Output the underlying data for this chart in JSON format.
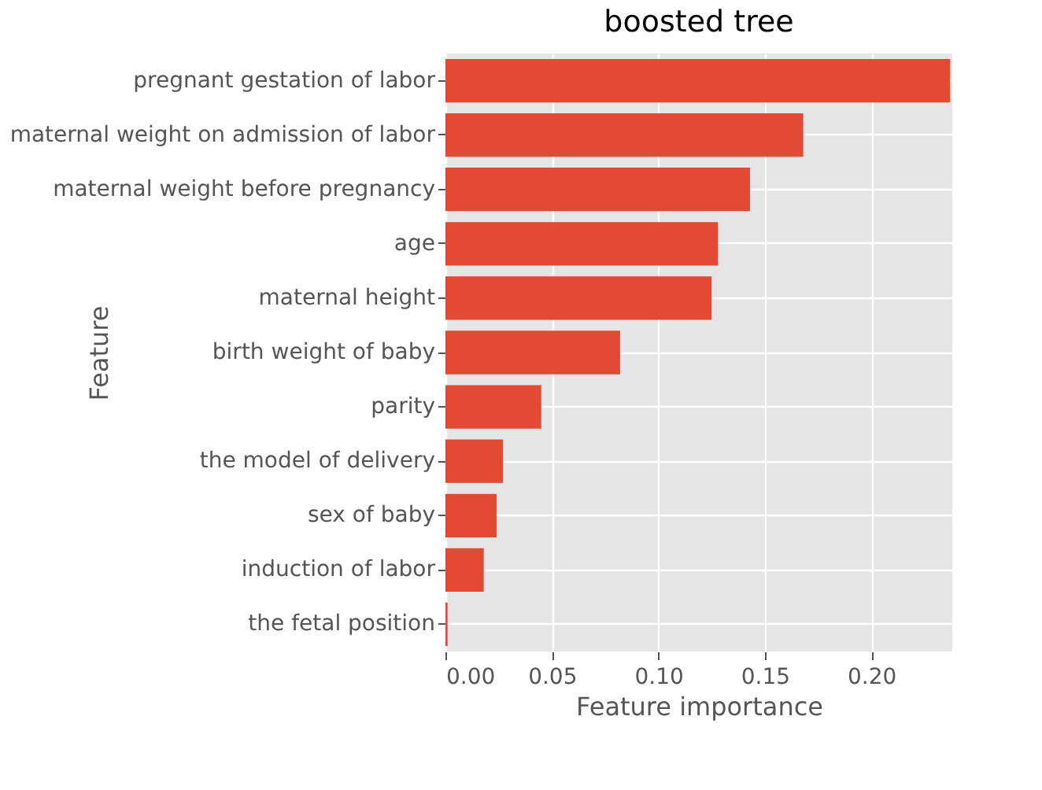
{
  "chart_data": {
    "type": "bar",
    "orientation": "horizontal",
    "title": "boosted tree",
    "xlabel": "Feature importance",
    "ylabel": "Feature",
    "categories": [
      "pregnant gestation of labor",
      "maternal weight on admission of labor",
      "maternal weight before pregnancy",
      "age",
      "maternal height",
      "birth weight of baby",
      "parity",
      "the model of delivery",
      "sex of baby",
      "induction of labor",
      "the fetal position"
    ],
    "values": [
      0.237,
      0.168,
      0.143,
      0.128,
      0.125,
      0.082,
      0.045,
      0.027,
      0.024,
      0.018,
      0.001
    ],
    "color": "#e24a33",
    "xlim": [
      0,
      0.238
    ],
    "xticks": [
      {
        "value": 0,
        "label": "0.00"
      },
      {
        "value": 0.05,
        "label": "0.05"
      },
      {
        "value": 0.1,
        "label": "0.10"
      },
      {
        "value": 0.15,
        "label": "0.15"
      },
      {
        "value": 0.2,
        "label": "0.20"
      }
    ],
    "grid": true
  }
}
